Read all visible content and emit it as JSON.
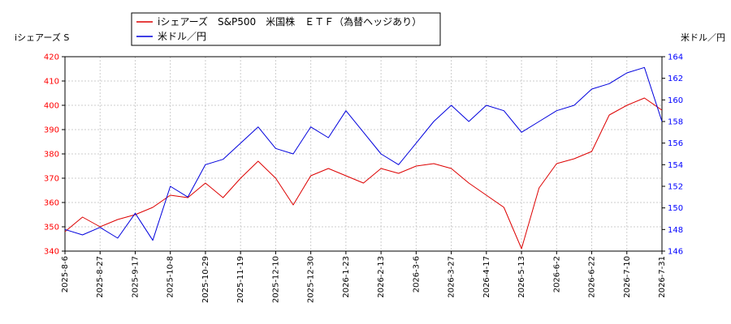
{
  "chart_data": {
    "type": "line",
    "legend_position": "top-left",
    "grid": true,
    "y_left": {
      "label": "iシェアーズ S",
      "range": [
        340,
        420
      ],
      "ticks": [
        340,
        350,
        360,
        370,
        380,
        390,
        400,
        410,
        420
      ],
      "color": "#ff0000"
    },
    "y_right": {
      "label": "米ドル／円",
      "range": [
        146,
        164
      ],
      "ticks": [
        146,
        148,
        150,
        152,
        154,
        156,
        158,
        160,
        162,
        164
      ],
      "color": "#0000ff"
    },
    "x_ticks": [
      "2025-8-6",
      "2025-8-27",
      "2025-9-17",
      "2025-10-8",
      "2025-10-29",
      "2025-11-19",
      "2025-12-10",
      "2025-12-30",
      "2026-1-23",
      "2026-2-13",
      "2026-3-6",
      "2026-3-27",
      "2026-4-17",
      "2026-5-13",
      "2026-6-2",
      "2026-6-22",
      "2026-7-10",
      "2026-7-31"
    ],
    "series": [
      {
        "name": "iシェアーズ　S&P500　米国株　ＥＴＦ（為替ヘッジあり）",
        "axis": "left",
        "color": "#dd0000",
        "x": [
          0,
          0.5,
          1,
          1.5,
          2,
          2.5,
          3,
          3.5,
          4,
          4.5,
          5,
          5.5,
          6,
          6.5,
          7,
          7.5,
          8,
          8.5,
          9,
          9.5,
          10,
          10.5,
          11,
          11.5,
          12,
          12.5,
          13,
          13.5,
          14,
          14.5,
          15,
          15.5,
          16,
          16.5,
          17
        ],
        "values": [
          348,
          354,
          350,
          353,
          355,
          358,
          363,
          362,
          368,
          362,
          370,
          377,
          370,
          359,
          371,
          374,
          371,
          368,
          374,
          372,
          375,
          376,
          374,
          368,
          363,
          358,
          341,
          366,
          376,
          378,
          381,
          396,
          400,
          403,
          398
        ]
      },
      {
        "name": "米ドル／円",
        "axis": "right",
        "color": "#0000dd",
        "x": [
          0,
          0.5,
          1,
          1.5,
          2,
          2.5,
          3,
          3.5,
          4,
          4.5,
          5,
          5.5,
          6,
          6.5,
          7,
          7.5,
          8,
          8.5,
          9,
          9.5,
          10,
          10.5,
          11,
          11.5,
          12,
          12.5,
          13,
          13.5,
          14,
          14.5,
          15,
          15.5,
          16,
          16.5,
          17
        ],
        "values": [
          148,
          147.5,
          148.2,
          147.2,
          149.5,
          147,
          152,
          151,
          154,
          154.5,
          156,
          157.5,
          155.5,
          155,
          157.5,
          156.5,
          159,
          157,
          155,
          154,
          156,
          158,
          159.5,
          158,
          159.5,
          159,
          157,
          158,
          159,
          159.5,
          161,
          161.5,
          162.5,
          163,
          158
        ]
      }
    ]
  }
}
